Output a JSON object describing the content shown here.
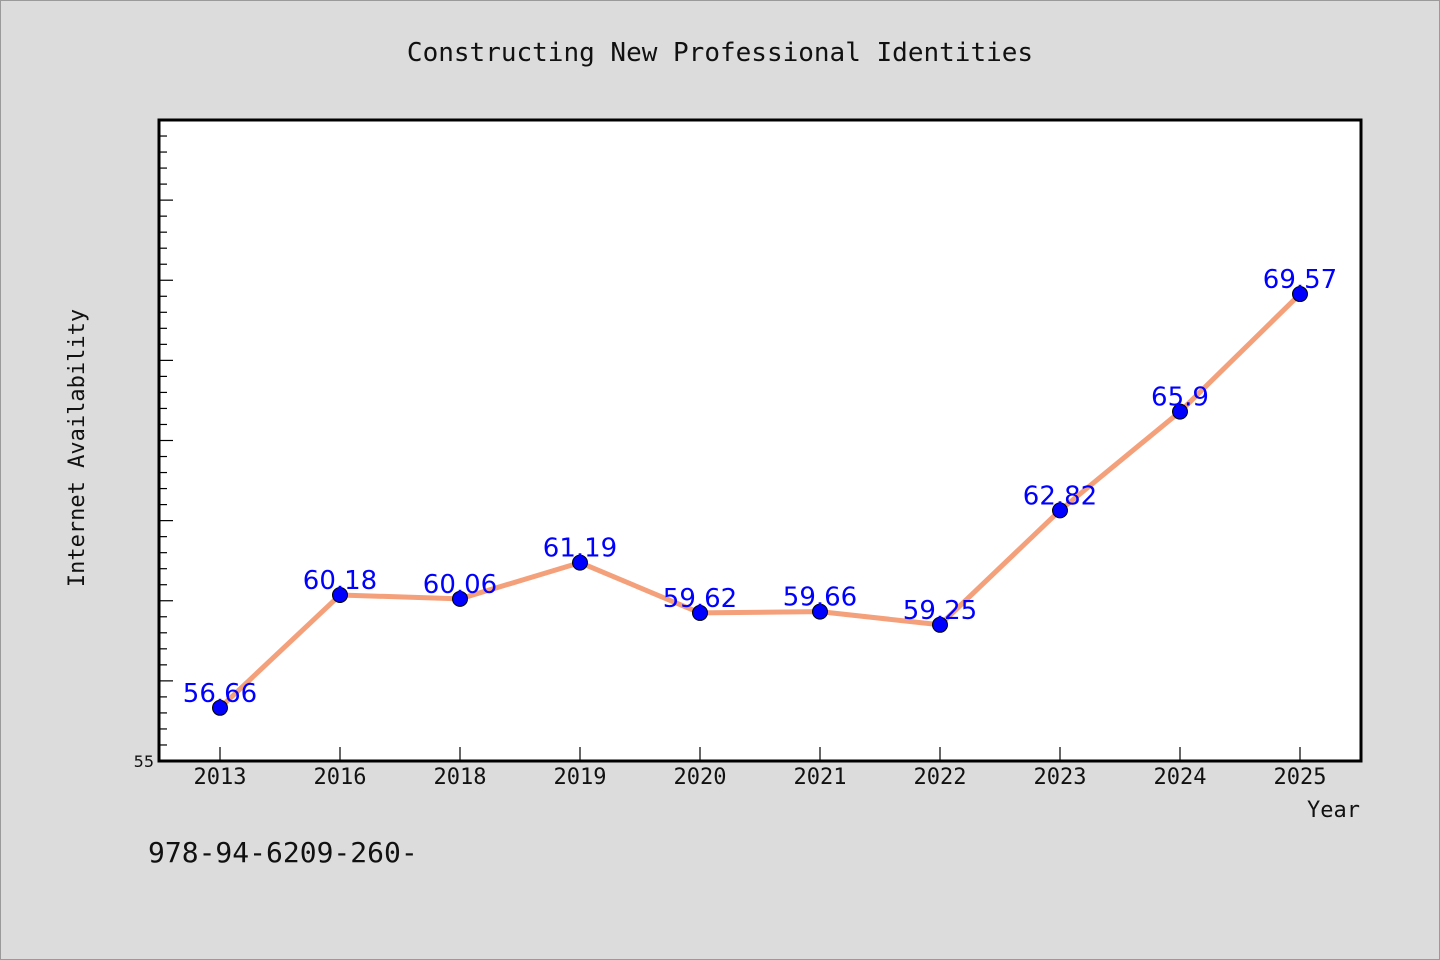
{
  "chart_data": {
    "type": "line",
    "title": "Constructing New Professional Identities",
    "xlabel": "Year",
    "ylabel": "Internet Availability",
    "categories": [
      "2013",
      "2016",
      "2018",
      "2019",
      "2020",
      "2021",
      "2022",
      "2023",
      "2024",
      "2025"
    ],
    "series": [
      {
        "values": [
          56.66,
          60.18,
          60.06,
          61.19,
          59.62,
          59.66,
          59.25,
          62.82,
          65.9,
          69.57
        ],
        "data_labels": [
          "56.66",
          "60.18",
          "60.06",
          "61.19",
          "59.62",
          "59.66",
          "59.25",
          "62.82",
          "65.9",
          "69.57"
        ],
        "line_color": "#f4a07a",
        "marker_color": "#0000ff"
      }
    ],
    "ylim": [
      55,
      75
    ],
    "ytick_labels": [
      {
        "value": 55,
        "label": "55"
      }
    ],
    "grid": false,
    "background": "#ffffff"
  },
  "footer": {
    "isbn_text": "978-94-6209-260-"
  }
}
